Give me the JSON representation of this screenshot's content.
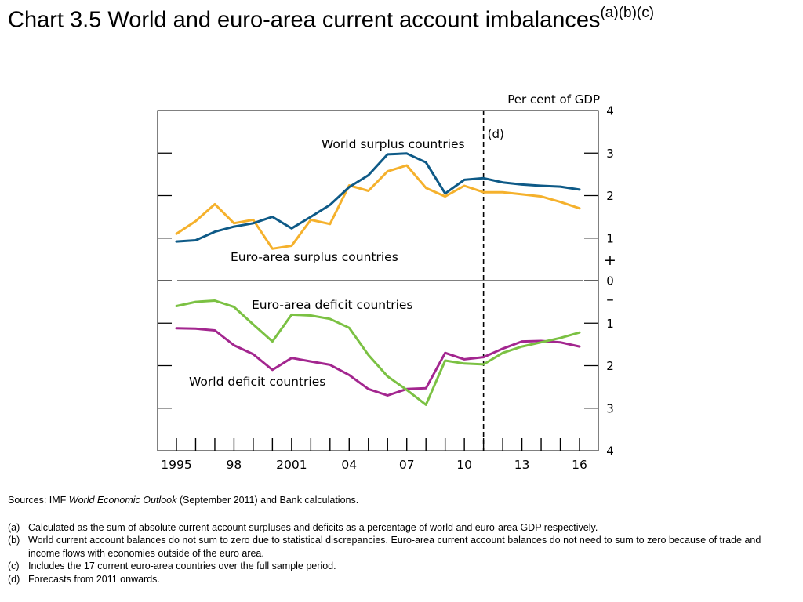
{
  "title": {
    "main": "Chart 3.5  World and euro-area current account imbalances",
    "superscript": "(a)(b)(c)"
  },
  "chart_data": {
    "type": "line",
    "x": [
      1995,
      1996,
      1997,
      1998,
      1999,
      2000,
      2001,
      2002,
      2003,
      2004,
      2005,
      2006,
      2007,
      2008,
      2009,
      2010,
      2011,
      2012,
      2013,
      2014,
      2015,
      2016
    ],
    "x_tick_labels": [
      {
        "x": 1995,
        "label": "1995"
      },
      {
        "x": 1998,
        "label": "98"
      },
      {
        "x": 2001,
        "label": "2001"
      },
      {
        "x": 2004,
        "label": "04"
      },
      {
        "x": 2007,
        "label": "07"
      },
      {
        "x": 2010,
        "label": "10"
      },
      {
        "x": 2013,
        "label": "13"
      },
      {
        "x": 2016,
        "label": "16"
      }
    ],
    "y_unit_label": "Per cent of GDP",
    "ylim": [
      -4,
      4
    ],
    "y_tick_labels": [
      {
        "y": 4,
        "label": "4"
      },
      {
        "y": 3,
        "label": "3"
      },
      {
        "y": 2,
        "label": "2"
      },
      {
        "y": 1,
        "label": "1"
      },
      {
        "y": 0,
        "label": "0"
      },
      {
        "y": -1,
        "label": "1"
      },
      {
        "y": -2,
        "label": "2"
      },
      {
        "y": -3,
        "label": "3"
      },
      {
        "y": -4,
        "label": "4"
      }
    ],
    "sign_labels": {
      "plus": "+",
      "minus": "–"
    },
    "forecast_line": {
      "x": 2011,
      "label": "(d)"
    },
    "series": [
      {
        "name": "World surplus countries",
        "color": "#0e5a87",
        "values": [
          0.92,
          0.95,
          1.15,
          1.27,
          1.35,
          1.5,
          1.23,
          1.5,
          1.78,
          2.2,
          2.48,
          2.97,
          2.99,
          2.78,
          2.05,
          2.37,
          2.41,
          2.31,
          2.26,
          2.23,
          2.21,
          2.14
        ]
      },
      {
        "name": "Euro-area surplus countries",
        "color": "#f5b12c",
        "values": [
          1.1,
          1.4,
          1.8,
          1.35,
          1.43,
          0.75,
          0.82,
          1.43,
          1.33,
          2.24,
          2.11,
          2.57,
          2.71,
          2.18,
          1.98,
          2.23,
          2.08,
          2.08,
          2.03,
          1.98,
          1.85,
          1.7
        ]
      },
      {
        "name": "Euro-area deficit countries",
        "color": "#7bc143",
        "values": [
          -0.6,
          -0.5,
          -0.47,
          -0.62,
          -1.03,
          -1.43,
          -0.8,
          -0.82,
          -0.9,
          -1.11,
          -1.75,
          -2.25,
          -2.57,
          -2.92,
          -1.88,
          -1.95,
          -1.97,
          -1.7,
          -1.55,
          -1.45,
          -1.35,
          -1.22
        ]
      },
      {
        "name": "World deficit countries",
        "color": "#a3268f",
        "values": [
          -1.12,
          -1.13,
          -1.17,
          -1.52,
          -1.73,
          -2.1,
          -1.82,
          -1.9,
          -1.98,
          -2.22,
          -2.55,
          -2.7,
          -2.55,
          -2.53,
          -1.7,
          -1.85,
          -1.8,
          -1.6,
          -1.43,
          -1.42,
          -1.45,
          -1.55
        ]
      }
    ],
    "annotations": [
      {
        "text": "World surplus countries",
        "series": "World surplus countries"
      },
      {
        "text": "Euro-area surplus countries",
        "series": "Euro-area surplus countries"
      },
      {
        "text": "Euro-area deficit countries",
        "series": "Euro-area deficit countries"
      },
      {
        "text": "World deficit countries",
        "series": "World deficit countries"
      }
    ]
  },
  "sources": {
    "prefix": "Sources:  IMF ",
    "publication": "World Economic Outlook",
    "suffix": " (September 2011) and Bank calculations."
  },
  "footnotes": [
    {
      "marker": "(a)",
      "text": "Calculated as the sum of absolute current account surpluses and deficits as a percentage of world and euro-area GDP respectively."
    },
    {
      "marker": "(b)",
      "text": "World current account balances do not sum to zero due to statistical discrepancies.  Euro-area current account balances do not need to sum to zero because of trade and income flows with economies outside of the euro area."
    },
    {
      "marker": "(c)",
      "text": "Includes the 17 current euro-area countries over the full sample period."
    },
    {
      "marker": "(d)",
      "text": "Forecasts from 2011 onwards."
    }
  ]
}
